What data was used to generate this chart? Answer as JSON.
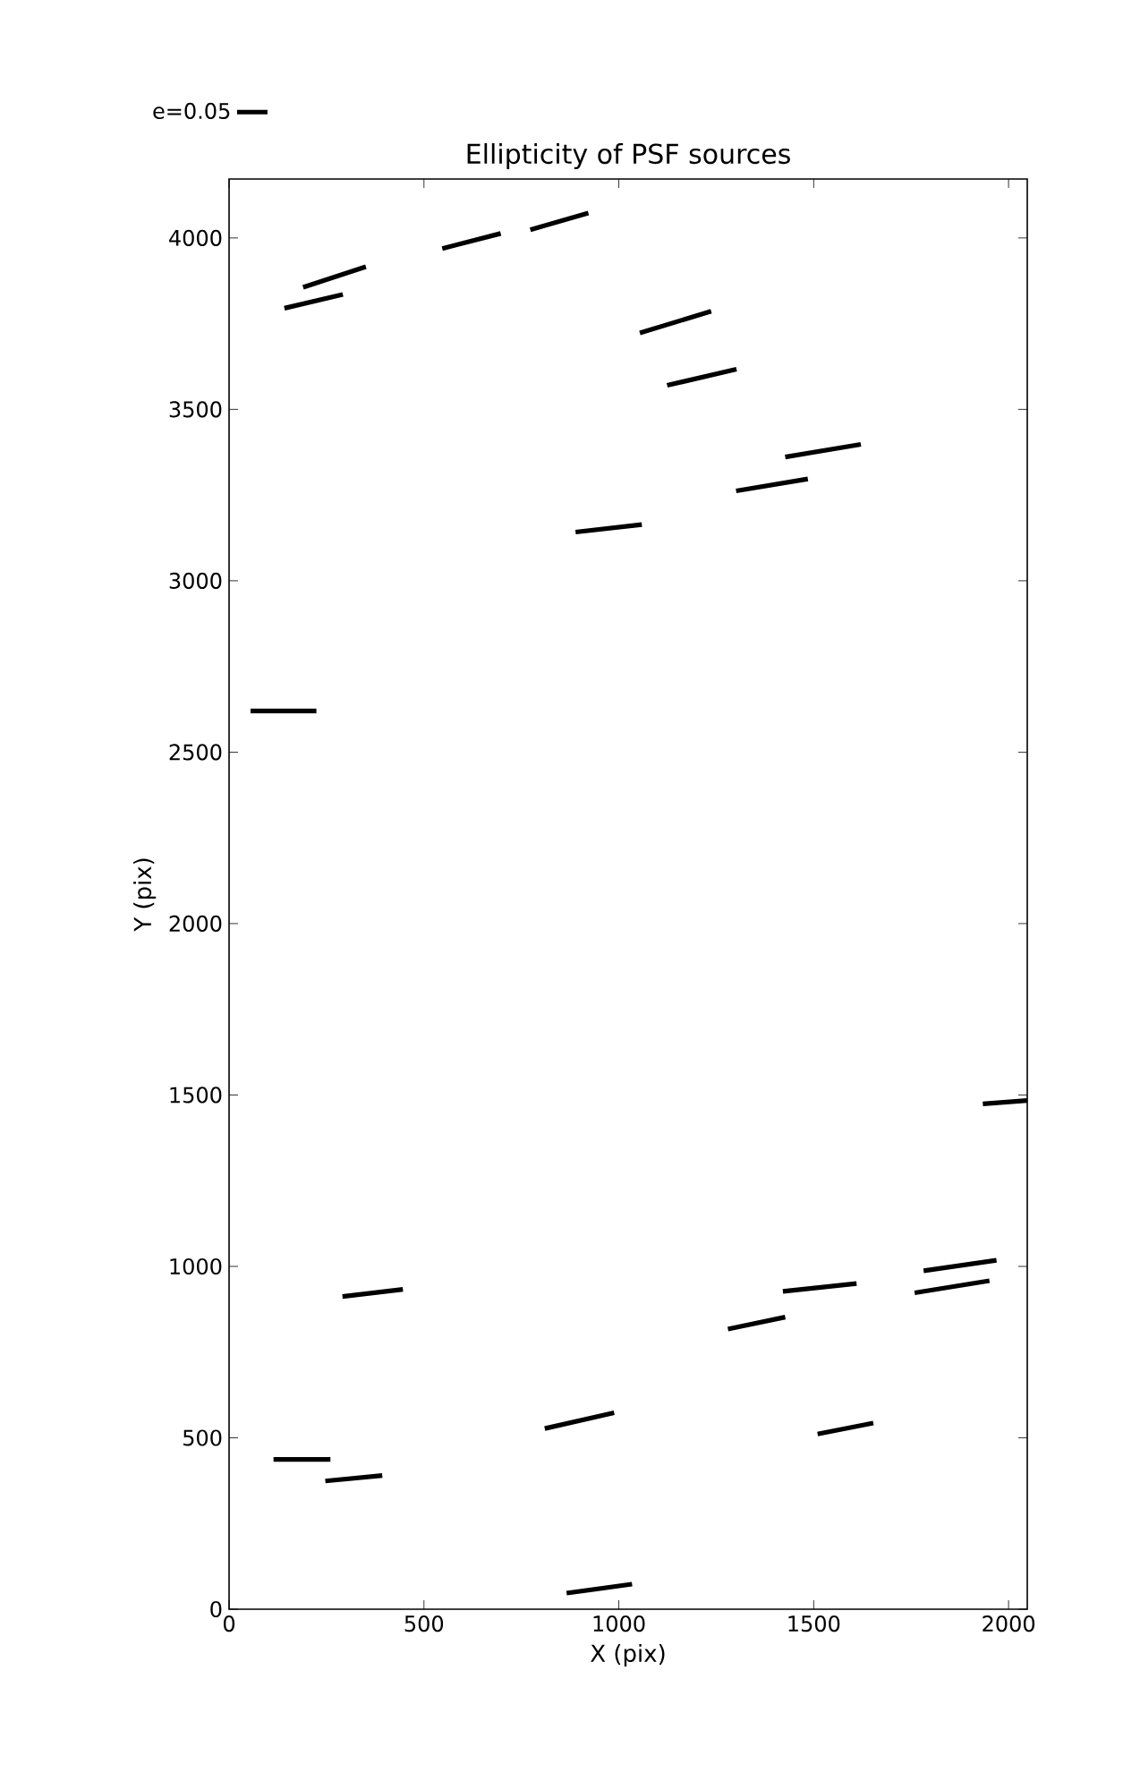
{
  "chart_data": {
    "type": "line",
    "title": "Ellipticity of PSF sources",
    "xlabel": "X (pix)",
    "ylabel": "Y (pix)",
    "xlim": [
      0,
      2048
    ],
    "ylim": [
      0,
      4172
    ],
    "xticks": [
      0,
      500,
      1000,
      1500,
      2000
    ],
    "yticks": [
      0,
      500,
      1000,
      1500,
      2000,
      2500,
      3000,
      3500,
      4000
    ],
    "grid": false,
    "legend": "top left",
    "marker": "none",
    "line_style": "solid",
    "series": [
      {
        "name": "e=0.05",
        "color": "#000000",
        "x": [
          190,
          351,
          null,
          142,
          292,
          null,
          547,
          697,
          null,
          773,
          922,
          null,
          1054,
          1237,
          null,
          1124,
          1302,
          null,
          1427,
          1621,
          null,
          1301,
          1485,
          null,
          889,
          1059,
          null,
          55,
          224,
          null,
          1934,
          2048,
          null,
          291,
          446,
          null,
          1421,
          1610,
          null,
          1782,
          1969,
          null,
          1759,
          1951,
          null,
          1280,
          1427,
          null,
          810,
          988,
          null,
          1510,
          1653,
          null,
          114,
          260,
          null,
          247,
          393,
          null,
          866,
          1034
        ],
        "values": [
          3856,
          3916,
          null,
          3795,
          3835,
          null,
          3969,
          4013,
          null,
          4024,
          4073,
          null,
          3723,
          3786,
          null,
          3570,
          3617,
          null,
          3361,
          3398,
          null,
          3262,
          3297,
          null,
          3142,
          3164,
          null,
          2620,
          2620,
          null,
          1474,
          1484,
          null,
          912,
          933,
          null,
          927,
          950,
          null,
          987,
          1018,
          null,
          923,
          958,
          null,
          817,
          852,
          null,
          527,
          573,
          null,
          511,
          543,
          null,
          437,
          437,
          null,
          374,
          390,
          null,
          47,
          73
        ]
      }
    ]
  }
}
